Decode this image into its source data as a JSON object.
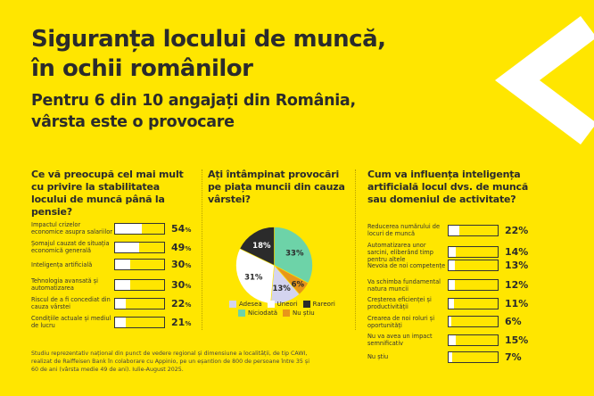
{
  "title": [
    "Siguranța locului de muncă,",
    "în ochii românilor"
  ],
  "subtitle": [
    "Pentru 6 din 10 angajați din România,",
    "vârsta este o provocare"
  ],
  "chart_data": [
    {
      "type": "bar",
      "title": "Ce vă preocupă cel mai mult cu privire la stabilitatea locului de muncă până la pensie?",
      "categories": [
        "Impactul crizelor economice asupra salariilor",
        "Șomajul cauzat de situația economică generală",
        "Inteligența artificială",
        "Tehnologia avansată și automatizarea",
        "Riscul de a fi concediat din cauza vârstei",
        "Condițiile actuale și mediul de lucru"
      ],
      "values": [
        54,
        49,
        30,
        30,
        22,
        21
      ],
      "unit": "%",
      "ylim": [
        0,
        100
      ]
    },
    {
      "type": "pie",
      "title": "Ați întâmpinat provocări pe piața muncii din cauza vârstei?",
      "slices": [
        {
          "label": "Niciodată",
          "value": 33,
          "color": "#6dd3a8"
        },
        {
          "label": "Nu știu",
          "value": 6,
          "color": "#e8961a"
        },
        {
          "label": "Adesea",
          "value": 13,
          "color": "#d4d4ef"
        },
        {
          "label": "Uneori",
          "value": 31,
          "color": "#ffffff"
        },
        {
          "label": "Rareori",
          "value": 18,
          "color": "#2b2b2b"
        }
      ],
      "legend_order": [
        "Adesea",
        "Uneori",
        "Rareori",
        "Niciodată",
        "Nu știu"
      ],
      "unit": "%"
    },
    {
      "type": "bar",
      "title": "Cum va influența inteligența artificială locul dvs. de muncă sau domeniul de activitate?",
      "categories": [
        "Reducerea numărului de locuri de muncă",
        "Automatizarea unor sarcini, eliberând timp pentru altele",
        "Nevoia de noi competențe",
        "Va schimba fundamental natura muncii",
        "Creșterea eficienței și productivității",
        "Crearea de noi roluri și oportunități",
        "Nu va avea un impact semnificativ",
        "Nu știu"
      ],
      "values": [
        22,
        14,
        13,
        12,
        11,
        6,
        15,
        7
      ],
      "unit": "%",
      "ylim": [
        0,
        100
      ]
    }
  ],
  "footer": "Studiu reprezentativ național din punct de vedere regional și dimensiune a localității, de tip CAWI, realizat de Raiffeisen Bank în colaborare cu Appinio, pe un eșantion de 800 de persoane între 35 și 60 de ani (vârsta medie 49 de ani). Iulie-August 2025."
}
